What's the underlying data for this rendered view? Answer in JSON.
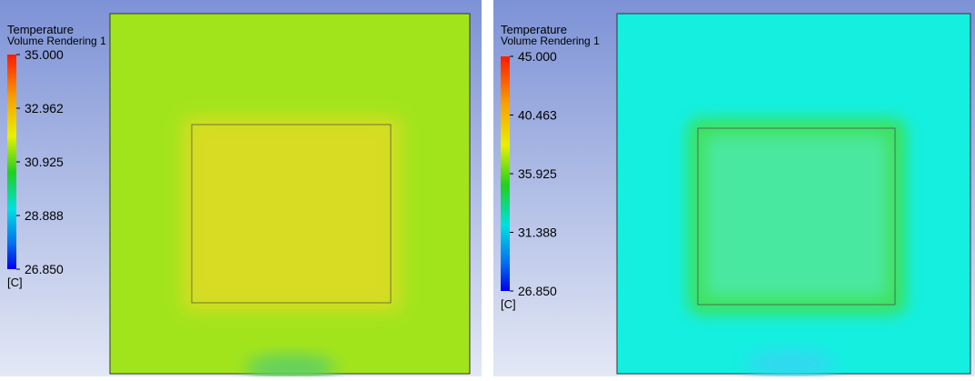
{
  "panels": [
    {
      "title": "Temperature",
      "subtitle": "Volume Rendering 1",
      "legend_labels": [
        "35.000",
        "32.962",
        "30.925",
        "28.888",
        "26.850"
      ],
      "unit": "[C]"
    },
    {
      "title": "Temperature",
      "subtitle": "Volume Rendering 1",
      "legend_labels": [
        "45.000",
        "40.463",
        "35.925",
        "31.388",
        "26.850"
      ],
      "unit": "[C]"
    }
  ]
}
